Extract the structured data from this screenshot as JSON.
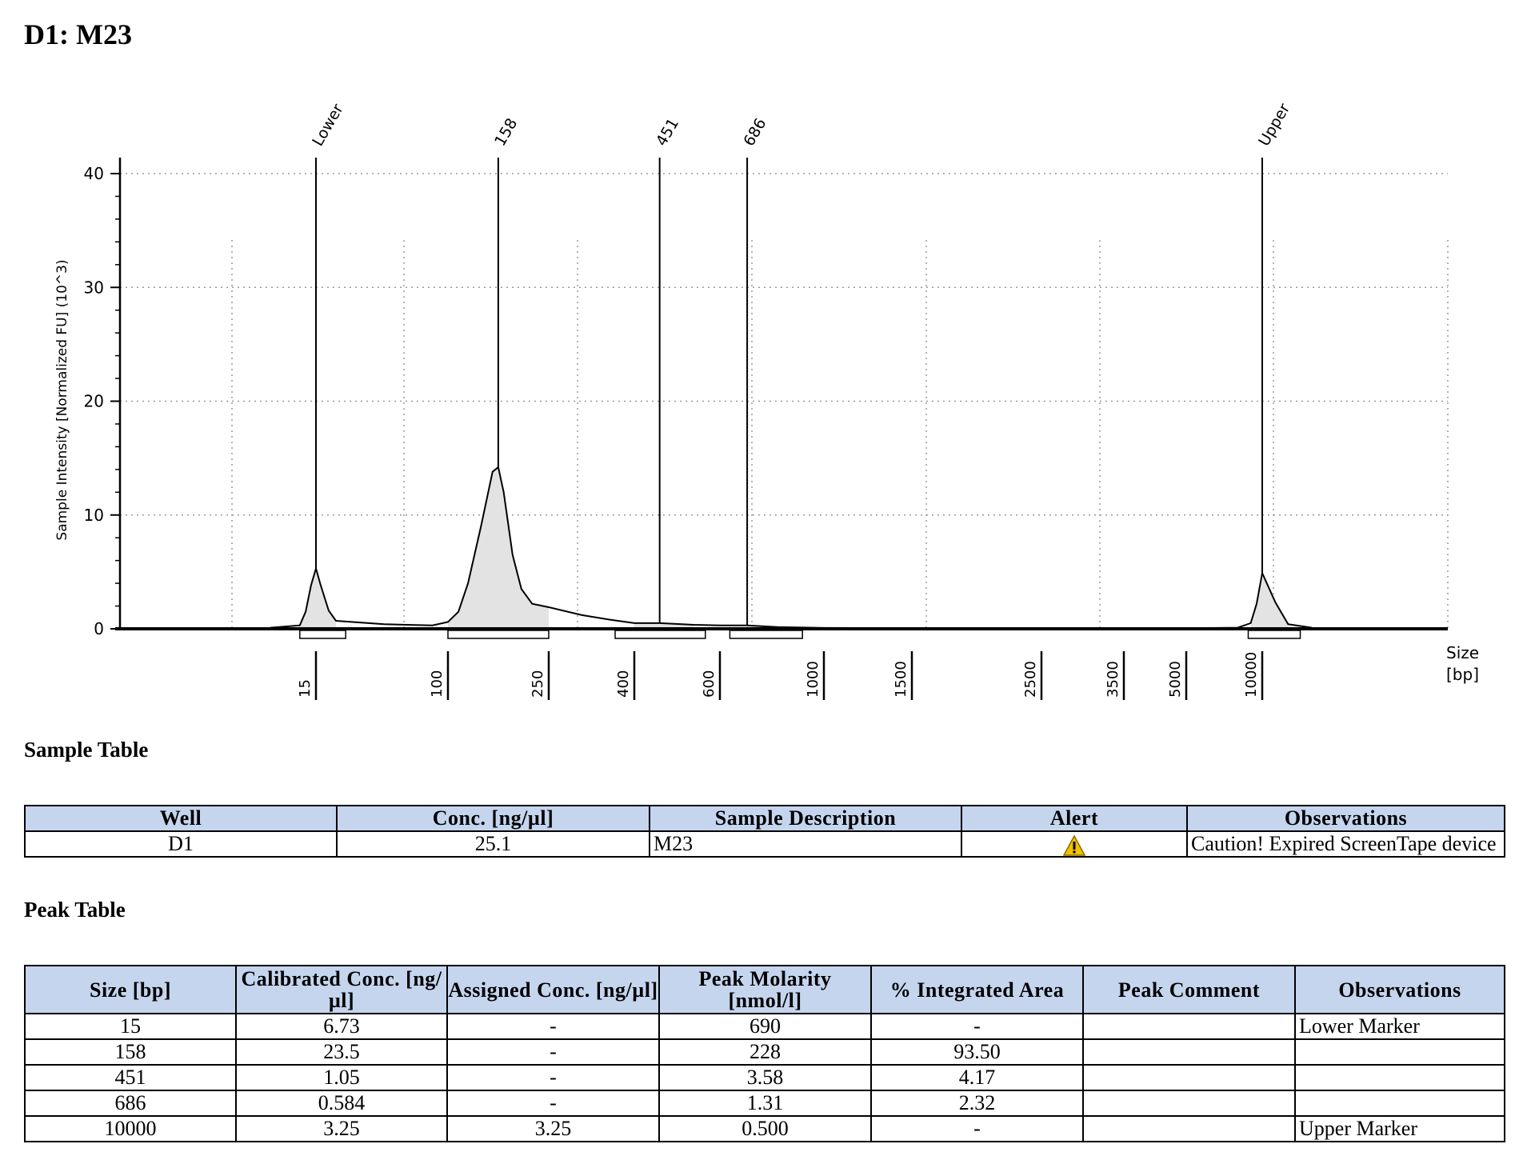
{
  "page_title": "D1: M23",
  "chart_data": {
    "type": "electropherogram",
    "ylabel": "Sample Intensity [Normalized FU] (10^3)",
    "xlabel_line1": "Size",
    "xlabel_line2": "[bp]",
    "ylim": [
      0,
      40
    ],
    "y_ticks": [
      0,
      10,
      20,
      30,
      40
    ],
    "x_ticks": [
      "15",
      "100",
      "250",
      "400",
      "600",
      "1000",
      "1500",
      "2500",
      "3500",
      "5000",
      "10000"
    ],
    "grid": true,
    "peaks": [
      {
        "label": "Lower",
        "size_bp": 15,
        "height": 5.3
      },
      {
        "label": "158",
        "size_bp": 158,
        "height": 14.2
      },
      {
        "label": "451",
        "size_bp": 451,
        "height": 0.5
      },
      {
        "label": "686",
        "size_bp": 686,
        "height": 0.3
      },
      {
        "label": "Upper",
        "size_bp": 10000,
        "height": 4.9
      }
    ],
    "trace": [
      [
        8,
        0.1
      ],
      [
        12,
        0.3
      ],
      [
        13,
        1.5
      ],
      [
        14,
        3.8
      ],
      [
        15,
        5.3
      ],
      [
        16,
        3.9
      ],
      [
        18,
        1.6
      ],
      [
        20,
        0.7
      ],
      [
        40,
        0.4
      ],
      [
        80,
        0.3
      ],
      [
        100,
        0.6
      ],
      [
        110,
        1.5
      ],
      [
        120,
        4
      ],
      [
        135,
        9
      ],
      [
        150,
        13.8
      ],
      [
        158,
        14.2
      ],
      [
        166,
        12
      ],
      [
        180,
        6.5
      ],
      [
        195,
        3.5
      ],
      [
        215,
        2.2
      ],
      [
        250,
        1.9
      ],
      [
        300,
        1.2
      ],
      [
        350,
        0.8
      ],
      [
        400,
        0.5
      ],
      [
        451,
        0.5
      ],
      [
        530,
        0.35
      ],
      [
        600,
        0.3
      ],
      [
        686,
        0.3
      ],
      [
        800,
        0.15
      ],
      [
        1000,
        0.08
      ],
      [
        1500,
        0.05
      ],
      [
        2500,
        0.03
      ],
      [
        3500,
        0.03
      ],
      [
        5000,
        0.05
      ],
      [
        8000,
        0.1
      ],
      [
        9000,
        0.5
      ],
      [
        9500,
        2.2
      ],
      [
        10000,
        4.9
      ],
      [
        10500,
        2.3
      ],
      [
        11000,
        0.4
      ],
      [
        12000,
        0.1
      ]
    ],
    "integration_ranges_bp": [
      [
        12,
        23
      ],
      [
        100,
        250
      ],
      [
        360,
        560
      ],
      [
        630,
        900
      ],
      [
        8800,
        11500
      ]
    ]
  },
  "sample_table": {
    "title": "Sample Table",
    "headers": [
      "Well",
      "Conc. [ng/µl]",
      "Sample Description",
      "Alert",
      "Observations"
    ],
    "rows": [
      {
        "well": "D1",
        "conc": "25.1",
        "description": "M23",
        "alert_icon": "warning-triangle-icon",
        "observations": "Caution! Expired ScreenTape device"
      }
    ]
  },
  "peak_table": {
    "title": "Peak Table",
    "headers": [
      "Size [bp]",
      "Calibrated Conc. [ng/µl]",
      "Assigned Conc. [ng/µl]",
      "Peak Molarity [nmol/l]",
      "% Integrated Area",
      "Peak Comment",
      "Observations"
    ],
    "rows": [
      [
        "15",
        "6.73",
        "-",
        "690",
        "-",
        "",
        "Lower Marker"
      ],
      [
        "158",
        "23.5",
        "-",
        "228",
        "93.50",
        "",
        ""
      ],
      [
        "451",
        "1.05",
        "-",
        "3.58",
        "4.17",
        "",
        ""
      ],
      [
        "686",
        "0.584",
        "-",
        "1.31",
        "2.32",
        "",
        ""
      ],
      [
        "10000",
        "3.25",
        "3.25",
        "0.500",
        "-",
        "",
        "Upper Marker"
      ]
    ]
  },
  "colors": {
    "header_bg": "#c5d5ee",
    "peak_fill": "#e3e3e3",
    "trace": "#000000",
    "grid": "#9a9a9a",
    "warning": "#f2c200"
  }
}
